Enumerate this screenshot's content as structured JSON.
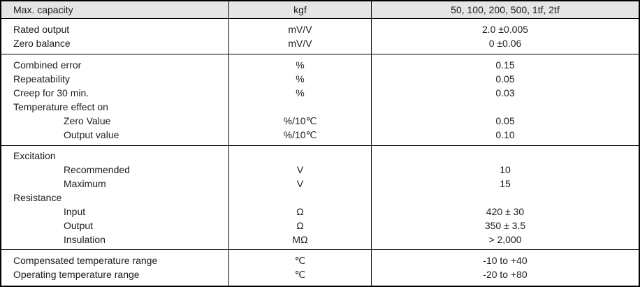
{
  "table": {
    "header": {
      "label": "Max. capacity",
      "unit": "kgf",
      "value": "50, 100, 200, 500, 1tf, 2tf"
    },
    "sections": [
      {
        "rows": [
          {
            "label": "Rated output",
            "indent": 0,
            "unit": "mV/V",
            "value": "2.0 ±0.005"
          },
          {
            "label": "Zero balance",
            "indent": 0,
            "unit": "mV/V",
            "value": "0 ±0.06"
          }
        ]
      },
      {
        "rows": [
          {
            "label": "Combined error",
            "indent": 0,
            "unit": "%",
            "value": "0.15"
          },
          {
            "label": "Repeatability",
            "indent": 0,
            "unit": "%",
            "value": "0.05"
          },
          {
            "label": "Creep for 30 min.",
            "indent": 0,
            "unit": "%",
            "value": "0.03"
          },
          {
            "label": "Temperature effect on",
            "indent": 0,
            "unit": "",
            "value": ""
          },
          {
            "label": "Zero Value",
            "indent": 1,
            "unit": "%/10℃",
            "value": "0.05"
          },
          {
            "label": "Output value",
            "indent": 1,
            "unit": "%/10℃",
            "value": "0.10"
          }
        ]
      },
      {
        "rows": [
          {
            "label": "Excitation",
            "indent": 0,
            "unit": "",
            "value": ""
          },
          {
            "label": "Recommended",
            "indent": 1,
            "unit": "V",
            "value": "10"
          },
          {
            "label": "Maximum",
            "indent": 1,
            "unit": "V",
            "value": "15"
          },
          {
            "label": "Resistance",
            "indent": 0,
            "unit": "",
            "value": ""
          },
          {
            "label": "Input",
            "indent": 1,
            "unit": "Ω",
            "value": "420 ± 30"
          },
          {
            "label": "Output",
            "indent": 1,
            "unit": "Ω",
            "value": "350 ± 3.5"
          },
          {
            "label": "Insulation",
            "indent": 1,
            "unit": "MΩ",
            "value": "> 2,000"
          }
        ]
      },
      {
        "rows": [
          {
            "label": "Compensated temperature range",
            "indent": 0,
            "unit": "℃",
            "value": "-10 to +40"
          },
          {
            "label": "Operating temperature range",
            "indent": 0,
            "unit": "℃",
            "value": "-20 to +80"
          }
        ]
      }
    ],
    "colors": {
      "header_background": "#e5e5e5",
      "border": "#000000",
      "text": "#1c1c1c"
    }
  }
}
